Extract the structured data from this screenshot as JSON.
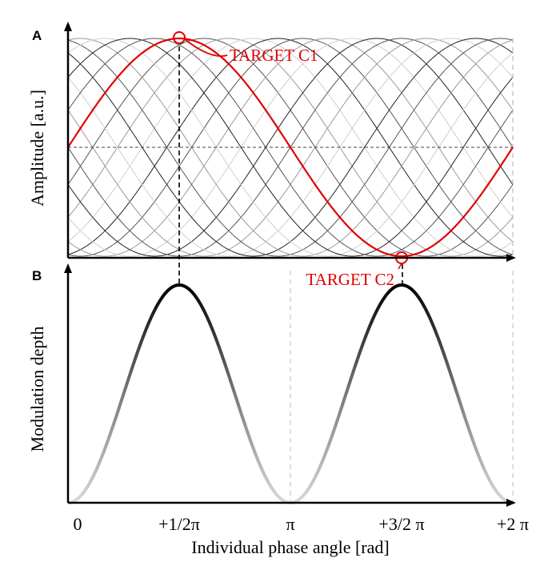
{
  "chart_data": [
    {
      "type": "line",
      "panel": "A",
      "ylabel": "Amplitude [a.u.]",
      "x_range": [
        0,
        6.2832
      ],
      "ylim": [
        -1,
        1
      ],
      "grid": false,
      "reference_line": {
        "y": 0,
        "style": "dashed"
      },
      "background_curves": {
        "description": "family of phase-shifted sinusoids",
        "phase_offsets_rad": [
          0,
          0.3491,
          0.6981,
          1.0472,
          1.3963,
          1.7453,
          2.0944,
          2.4435,
          2.7925,
          3.1416,
          3.4907,
          3.8397,
          4.1888,
          4.5379,
          4.8869,
          5.236,
          5.5851,
          5.9341
        ]
      },
      "series": [
        {
          "shape": "sine",
          "color": "#e00000",
          "x": [
            0,
            0.7854,
            1.5708,
            2.3562,
            3.1416,
            3.927,
            4.7124,
            5.4978,
            6.2832
          ],
          "y": [
            0,
            0.707,
            1,
            0.707,
            0,
            -0.707,
            -1,
            -0.707,
            0
          ]
        }
      ],
      "annotations": [
        {
          "label": "TARGET C1",
          "x": 1.5708,
          "y": 1
        },
        {
          "label": "TARGET C2",
          "x": 4.7124,
          "y": -1
        }
      ]
    },
    {
      "type": "line",
      "panel": "B",
      "ylabel": "Modulation depth",
      "xlabel": "Individual phase angle [rad]",
      "x_range": [
        0,
        6.2832
      ],
      "ylim": [
        0,
        1
      ],
      "grid": false,
      "tick_labels": [
        "0",
        "+1/2π",
        "π",
        "+3/2 π",
        "+2 π"
      ],
      "tick_values": [
        0,
        1.5708,
        3.1416,
        4.7124,
        6.2832
      ],
      "series": [
        {
          "shape": "squared sine",
          "x": [
            0,
            0.7854,
            1.5708,
            2.3562,
            3.1416,
            3.927,
            4.7124,
            5.4978,
            6.2832
          ],
          "y": [
            0,
            0.5,
            1,
            0.5,
            0,
            0.5,
            1,
            0.5,
            0
          ]
        }
      ]
    }
  ],
  "colors": {
    "target": "#e00000",
    "axis": "#000000",
    "guide_dashed": "#cccccc"
  }
}
